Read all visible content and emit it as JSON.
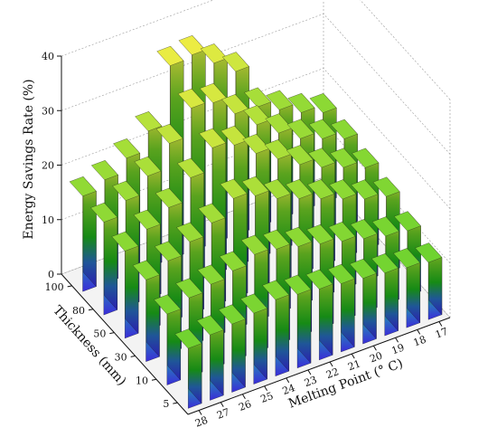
{
  "chart_data": {
    "type": "bar3d",
    "zlabel": "Energy Savings Rate (%)",
    "xlabel": "Melting Point (° C)",
    "ylabel": "Thickness (mm)",
    "zlim": [
      0,
      40
    ],
    "z_ticks": [
      "0",
      "10",
      "20",
      "30",
      "40"
    ],
    "melting_points": [
      "28",
      "27",
      "26",
      "25",
      "24",
      "23",
      "22",
      "21",
      "20",
      "19",
      "18",
      "17"
    ],
    "thickness": [
      "5",
      "10",
      "30",
      "50",
      "80",
      "100"
    ],
    "grid": true,
    "values": [
      [
        11.0,
        12.0,
        12.5,
        13.0,
        14.0,
        13.5,
        13.0,
        12.5,
        12.0,
        11.5,
        11.0,
        10.5
      ],
      [
        13.0,
        14.5,
        15.5,
        16.5,
        18.0,
        17.5,
        16.5,
        15.5,
        14.5,
        13.5,
        12.5,
        12.0
      ],
      [
        15.0,
        17.0,
        19.0,
        21.0,
        24.0,
        23.0,
        21.0,
        19.5,
        18.0,
        16.5,
        15.0,
        14.0
      ],
      [
        16.0,
        18.5,
        21.0,
        25.0,
        29.0,
        28.0,
        25.0,
        22.5,
        20.0,
        18.0,
        16.5,
        15.0
      ],
      [
        17.0,
        19.5,
        22.5,
        27.0,
        32.0,
        31.5,
        28.0,
        24.5,
        21.5,
        19.0,
        17.5,
        16.0
      ],
      [
        17.5,
        19.0,
        21.5,
        25.0,
        35.5,
        36.0,
        33.0,
        30.0,
        22.0,
        20.0,
        18.0,
        16.5
      ]
    ]
  }
}
